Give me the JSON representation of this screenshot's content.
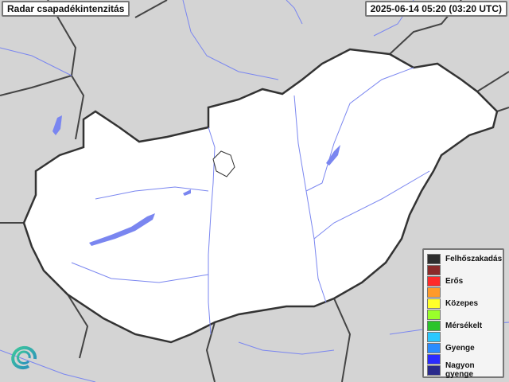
{
  "header": {
    "title": "Radar csapadékintenzitás",
    "timestamp": "2025-06-14 05:20 (03:20 UTC)"
  },
  "map": {
    "background_color": "#d4d4d4",
    "country_fill": "#ffffff",
    "border_color": "#333333",
    "water_color": "#7a86f0"
  },
  "legend": {
    "items": [
      {
        "label": "Felhőszakadás",
        "color": "#2e2e2e"
      },
      {
        "label": "",
        "color": "#8b2a2a"
      },
      {
        "label": "Erős",
        "color": "#ff2a2a"
      },
      {
        "label": "",
        "color": "#ff9a2a"
      },
      {
        "label": "Közepes",
        "color": "#ffff2a"
      },
      {
        "label": "",
        "color": "#9aff2a"
      },
      {
        "label": "Mérsékelt",
        "color": "#2ac42a"
      },
      {
        "label": "",
        "color": "#2ac8ff"
      },
      {
        "label": "Gyenge",
        "color": "#2a8cff"
      },
      {
        "label": "",
        "color": "#2a2aff"
      },
      {
        "label": "Nagyon gyenge",
        "color": "#2a2a8c"
      }
    ]
  },
  "logo": {
    "icon": "spiral-logo-icon"
  }
}
